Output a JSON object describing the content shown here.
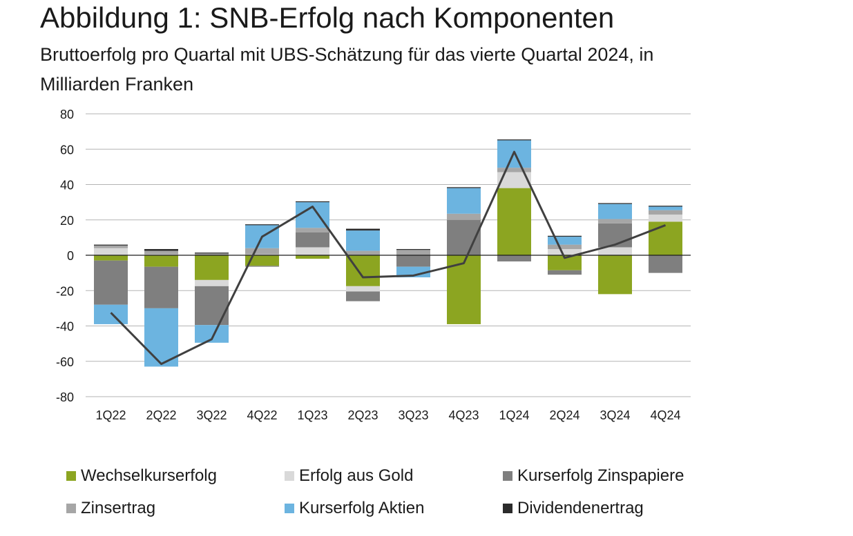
{
  "title": "Abbildung 1: SNB-Erfolg nach Komponenten",
  "subtitle": "Bruttoerfolg pro Quartal mit UBS-Schätzung für das vierte Quartal 2024, in Milliarden Franken",
  "chart_data": {
    "type": "bar",
    "stacked": true,
    "categories": [
      "1Q22",
      "2Q22",
      "3Q22",
      "4Q22",
      "1Q23",
      "2Q23",
      "3Q23",
      "4Q23",
      "1Q24",
      "2Q24",
      "3Q24",
      "4Q24"
    ],
    "ylim": [
      -80,
      80
    ],
    "yticks": [
      80,
      60,
      40,
      20,
      0,
      -20,
      -40,
      -60,
      -80
    ],
    "grid": true,
    "legend_placement": "bottom",
    "series": [
      {
        "name": "Wechselkurserfolg",
        "color": "#8ca521",
        "values": [
          -3,
          -6.5,
          -14,
          -6,
          -2,
          -17.5,
          0,
          -39,
          38,
          -8.5,
          -22,
          19
        ]
      },
      {
        "name": "Erfolg aus Gold",
        "color": "#d9d9d9",
        "values": [
          4,
          0.5,
          -3.5,
          0.5,
          4.5,
          -3,
          0,
          0,
          9,
          3.5,
          4.5,
          4
        ]
      },
      {
        "name": "Kurserfolg Zinspapiere",
        "color": "#7f7f7f",
        "values": [
          -25,
          -23.5,
          -22,
          -0.5,
          8.5,
          -5.5,
          -6.5,
          20,
          -3.5,
          -2.5,
          13.5,
          -10
        ]
      },
      {
        "name": "Zinsertrag",
        "color": "#a6a6a6",
        "values": [
          1.5,
          2,
          1,
          3.5,
          2.5,
          2.5,
          3,
          3.5,
          2.5,
          2.5,
          2.5,
          2.5
        ]
      },
      {
        "name": "Kurserfolg Aktien",
        "color": "#6cb4e0",
        "values": [
          -11,
          -33,
          -10,
          13,
          14.5,
          11.5,
          -6,
          14.5,
          15.5,
          4.5,
          8.5,
          2
        ]
      },
      {
        "name": "Dividendenertrag",
        "color": "#2b2b2b",
        "values": [
          0.5,
          1,
          0.5,
          0.5,
          0.5,
          1,
          0.5,
          0.5,
          0.5,
          0.5,
          0.5,
          0.5
        ]
      }
    ],
    "line": {
      "color": "#404040",
      "values": [
        -32.5,
        -61.5,
        -47.5,
        10.5,
        27.5,
        -12.5,
        -11.5,
        -4.5,
        58.5,
        -1.5,
        6,
        17
      ]
    }
  }
}
